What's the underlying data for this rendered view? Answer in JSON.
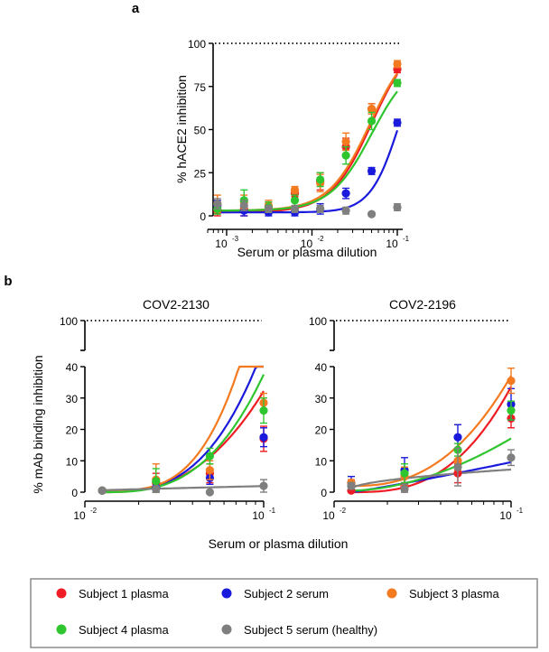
{
  "figure": {
    "panel_a_label": "a",
    "panel_b_label": "b",
    "shared_xlabel_b": "Serum or plasma dilution",
    "shared_ylabel_b": "% mAb binding inhibition"
  },
  "series_styles": [
    {
      "id": "s1",
      "color": "#ee1c24"
    },
    {
      "id": "s2",
      "color": "#1a1adc"
    },
    {
      "id": "s3",
      "color": "#f47a20"
    },
    {
      "id": "s4",
      "color": "#2fc52f"
    },
    {
      "id": "s5",
      "color": "#7f7f7f"
    }
  ],
  "legend": {
    "items": [
      {
        "id": "s1",
        "label": "Subject 1 plasma"
      },
      {
        "id": "s2",
        "label": "Subject 2 serum"
      },
      {
        "id": "s3",
        "label": "Subject 3 plasma"
      },
      {
        "id": "s4",
        "label": "Subject 4 plasma"
      },
      {
        "id": "s5",
        "label": "Subject 5 serum (healthy)"
      }
    ]
  },
  "chart_data": [
    {
      "id": "a",
      "type": "scatter",
      "title": "",
      "xlabel": "Serum or plasma dilution",
      "ylabel": "% hACE2 inhibition",
      "x_scale": "log",
      "xlim": [
        0.0006,
        0.105
      ],
      "ylim": [
        0,
        100
      ],
      "y_ticks": [
        0,
        25,
        50,
        75,
        100
      ],
      "y_tick_labels": [
        "0",
        "25",
        "50",
        "75",
        "100"
      ],
      "x_ticks": [
        0.001,
        0.01,
        0.1
      ],
      "x_tick_labels": [
        {
          "base": "10",
          "exp": "-3"
        },
        {
          "base": "10",
          "exp": "-2"
        },
        {
          "base": "10",
          "exp": "-1"
        }
      ],
      "reference_line": 100,
      "x": [
        0.00078,
        0.0016,
        0.0031,
        0.0063,
        0.0125,
        0.025,
        0.05,
        0.1
      ],
      "series": [
        {
          "id": "s1",
          "y": [
            3,
            4,
            5,
            13,
            20,
            40,
            62,
            85
          ],
          "err": [
            3,
            4,
            3,
            2,
            5,
            5,
            3,
            2
          ],
          "fit": {
            "bottom": 2,
            "top": 105,
            "ec50": 0.05,
            "hill": 1.8
          }
        },
        {
          "id": "s2",
          "y": [
            6,
            3,
            2,
            2,
            4,
            13,
            26,
            54
          ],
          "err": [
            3,
            4,
            3,
            3,
            3,
            3,
            2,
            2
          ],
          "fit": {
            "bottom": 2,
            "top": 110,
            "ec50": 0.11,
            "hill": 2.5
          }
        },
        {
          "id": "s3",
          "y": [
            7,
            8,
            6,
            15,
            19,
            43,
            62,
            88
          ],
          "err": [
            5,
            4,
            3,
            2,
            5,
            5,
            3,
            2
          ],
          "fit": {
            "bottom": 3,
            "top": 104,
            "ec50": 0.048,
            "hill": 1.8
          }
        },
        {
          "id": "s4",
          "y": [
            4,
            9,
            5,
            9,
            21,
            35,
            55,
            77
          ],
          "err": [
            3,
            6,
            3,
            3,
            4,
            5,
            5,
            2
          ],
          "fit": {
            "bottom": 3,
            "top": 92,
            "ec50": 0.05,
            "hill": 1.8
          }
        },
        {
          "id": "s5",
          "y": [
            7,
            6,
            4,
            4,
            4,
            3,
            1,
            5
          ],
          "err": [
            3,
            3,
            2,
            2,
            2,
            2,
            1,
            2
          ],
          "fit": null
        }
      ]
    },
    {
      "id": "b1",
      "type": "scatter",
      "title": "COV2-2130",
      "xlabel": "Serum or plasma dilution",
      "ylabel": "% mAb binding inhibition",
      "x_scale": "log",
      "xlim": [
        0.01,
        0.1
      ],
      "ylim": [
        0,
        40
      ],
      "y_axis_break": true,
      "y_break_top_value": 100,
      "y_ticks": [
        0,
        10,
        20,
        30,
        40
      ],
      "y_tick_labels": [
        "0",
        "10",
        "20",
        "30",
        "40"
      ],
      "x_ticks": [
        0.01,
        0.1
      ],
      "x_tick_labels": [
        {
          "base": "10",
          "exp": "-2"
        },
        {
          "base": "10",
          "exp": "-1"
        }
      ],
      "reference_line": 100,
      "x": [
        0.0125,
        0.025,
        0.05,
        0.1
      ],
      "series": [
        {
          "id": "s1",
          "y": [
            0.5,
            3,
            6,
            17
          ],
          "err": [
            0.5,
            3,
            3,
            4
          ],
          "fit": {
            "y0": 0,
            "k": 1.85,
            "e": 2.6
          }
        },
        {
          "id": "s2",
          "y": [
            0.5,
            1.5,
            4.5,
            17.5
          ],
          "err": [
            0.5,
            2,
            2,
            3
          ],
          "fit": {
            "y0": 0.3,
            "k": 1.7,
            "e": 3.0
          }
        },
        {
          "id": "s3",
          "y": [
            0.5,
            4,
            7,
            28.5
          ],
          "err": [
            0.5,
            5,
            3,
            3
          ],
          "fit": {
            "y0": 0.5,
            "k": 1.65,
            "e": 3.4
          }
        },
        {
          "id": "s4",
          "y": [
            0.5,
            3.5,
            11.5,
            26
          ],
          "err": [
            0.5,
            4,
            2.5,
            4
          ],
          "fit": {
            "y0": 0,
            "k": 1.55,
            "e": 2.9
          }
        },
        {
          "id": "s5",
          "y": [
            0.5,
            1,
            0,
            2
          ],
          "err": [
            0.5,
            1,
            0.5,
            2
          ],
          "fit": {
            "y0": 0.6,
            "k": 0.5,
            "e": 0.9
          }
        }
      ]
    },
    {
      "id": "b2",
      "type": "scatter",
      "title": "COV2-2196",
      "xlabel": "",
      "ylabel": "",
      "x_scale": "log",
      "xlim": [
        0.01,
        0.1
      ],
      "ylim": [
        0,
        40
      ],
      "y_axis_break": true,
      "y_break_top_value": 100,
      "y_ticks": [
        0,
        10,
        20,
        30,
        40
      ],
      "y_tick_labels": [
        "0",
        "10",
        "20",
        "30",
        "40"
      ],
      "x_ticks": [
        0.01,
        0.1
      ],
      "x_tick_labels": [
        {
          "base": "10",
          "exp": "-2"
        },
        {
          "base": "10",
          "exp": "-1"
        }
      ],
      "reference_line": 100,
      "x": [
        0.0125,
        0.025,
        0.05,
        0.1
      ],
      "series": [
        {
          "id": "s1",
          "y": [
            0.5,
            2,
            6,
            23.5
          ],
          "err": [
            1,
            3,
            3,
            3
          ],
          "fit": {
            "y0": 0,
            "k": 1.55,
            "e": 2.8
          }
        },
        {
          "id": "s2",
          "y": [
            3,
            7,
            17.5,
            28
          ],
          "err": [
            2,
            4,
            4,
            5
          ],
          "fit": {
            "y0": 0,
            "k": 2.85,
            "e": 1.1
          }
        },
        {
          "id": "s3",
          "y": [
            3,
            5,
            10,
            35.5
          ],
          "err": [
            1,
            3,
            3,
            4
          ],
          "fit": {
            "y0": 2,
            "k": 2.25,
            "e": 2.5
          }
        },
        {
          "id": "s4",
          "y": [
            2,
            6,
            13.5,
            26
          ],
          "err": [
            1,
            3,
            2,
            3
          ],
          "fit": {
            "y0": 0.5,
            "k": 2.3,
            "e": 1.8
          }
        },
        {
          "id": "s5",
          "y": [
            2,
            1,
            8,
            11
          ],
          "err": [
            1,
            1.5,
            6,
            2.5
          ],
          "fit": {
            "y0": 1,
            "k": 3.4,
            "e": 0.55
          }
        }
      ]
    }
  ]
}
